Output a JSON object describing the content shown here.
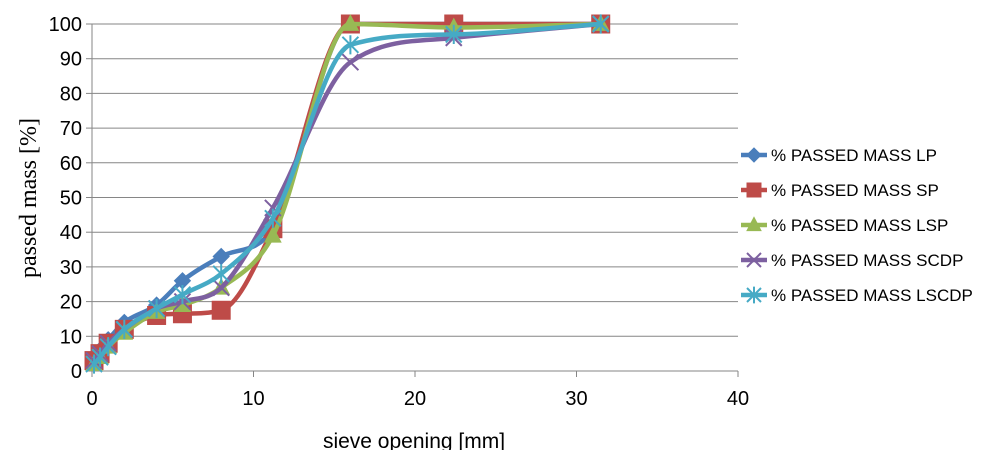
{
  "chart_data": {
    "type": "line",
    "title": "",
    "xlabel": "sieve opening [mm]",
    "ylabel": "passed  mass [%]",
    "xlim": [
      0,
      40
    ],
    "ylim": [
      0,
      100
    ],
    "xticks": [
      0,
      10,
      20,
      30,
      40
    ],
    "yticks": [
      0,
      10,
      20,
      30,
      40,
      50,
      60,
      70,
      80,
      90,
      100
    ],
    "grid": "horizontal",
    "legend_position": "right",
    "x": [
      0.125,
      0.5,
      1,
      2,
      4,
      5.6,
      8,
      11.2,
      16,
      22.4,
      31.5
    ],
    "series": [
      {
        "name": "% PASSED MASS  LP",
        "color": "#4a7ebb",
        "marker": "diamond",
        "values": [
          3,
          6,
          9,
          14,
          19,
          26,
          33,
          41,
          100,
          100,
          100
        ]
      },
      {
        "name": "% PASSED MASS  SP",
        "color": "#be4b48",
        "marker": "square",
        "values": [
          3,
          5,
          8,
          12,
          16,
          16.5,
          17.5,
          41,
          100,
          100,
          100
        ]
      },
      {
        "name": "% PASSED MASS  LSP",
        "color": "#98b954",
        "marker": "triangle",
        "values": [
          2,
          4,
          7,
          11,
          17,
          19,
          24,
          39,
          100,
          99,
          100
        ]
      },
      {
        "name": "% PASSED MASS  SCDP",
        "color": "#7d60a0",
        "marker": "x",
        "values": [
          3,
          5,
          8,
          12,
          18,
          20,
          24,
          47,
          89,
          96,
          100
        ]
      },
      {
        "name": "% PASSED MASS  LSCDP",
        "color": "#46aac5",
        "marker": "star",
        "values": [
          2,
          4,
          7,
          12,
          18,
          22,
          28,
          44,
          94,
          97,
          100
        ]
      }
    ]
  }
}
